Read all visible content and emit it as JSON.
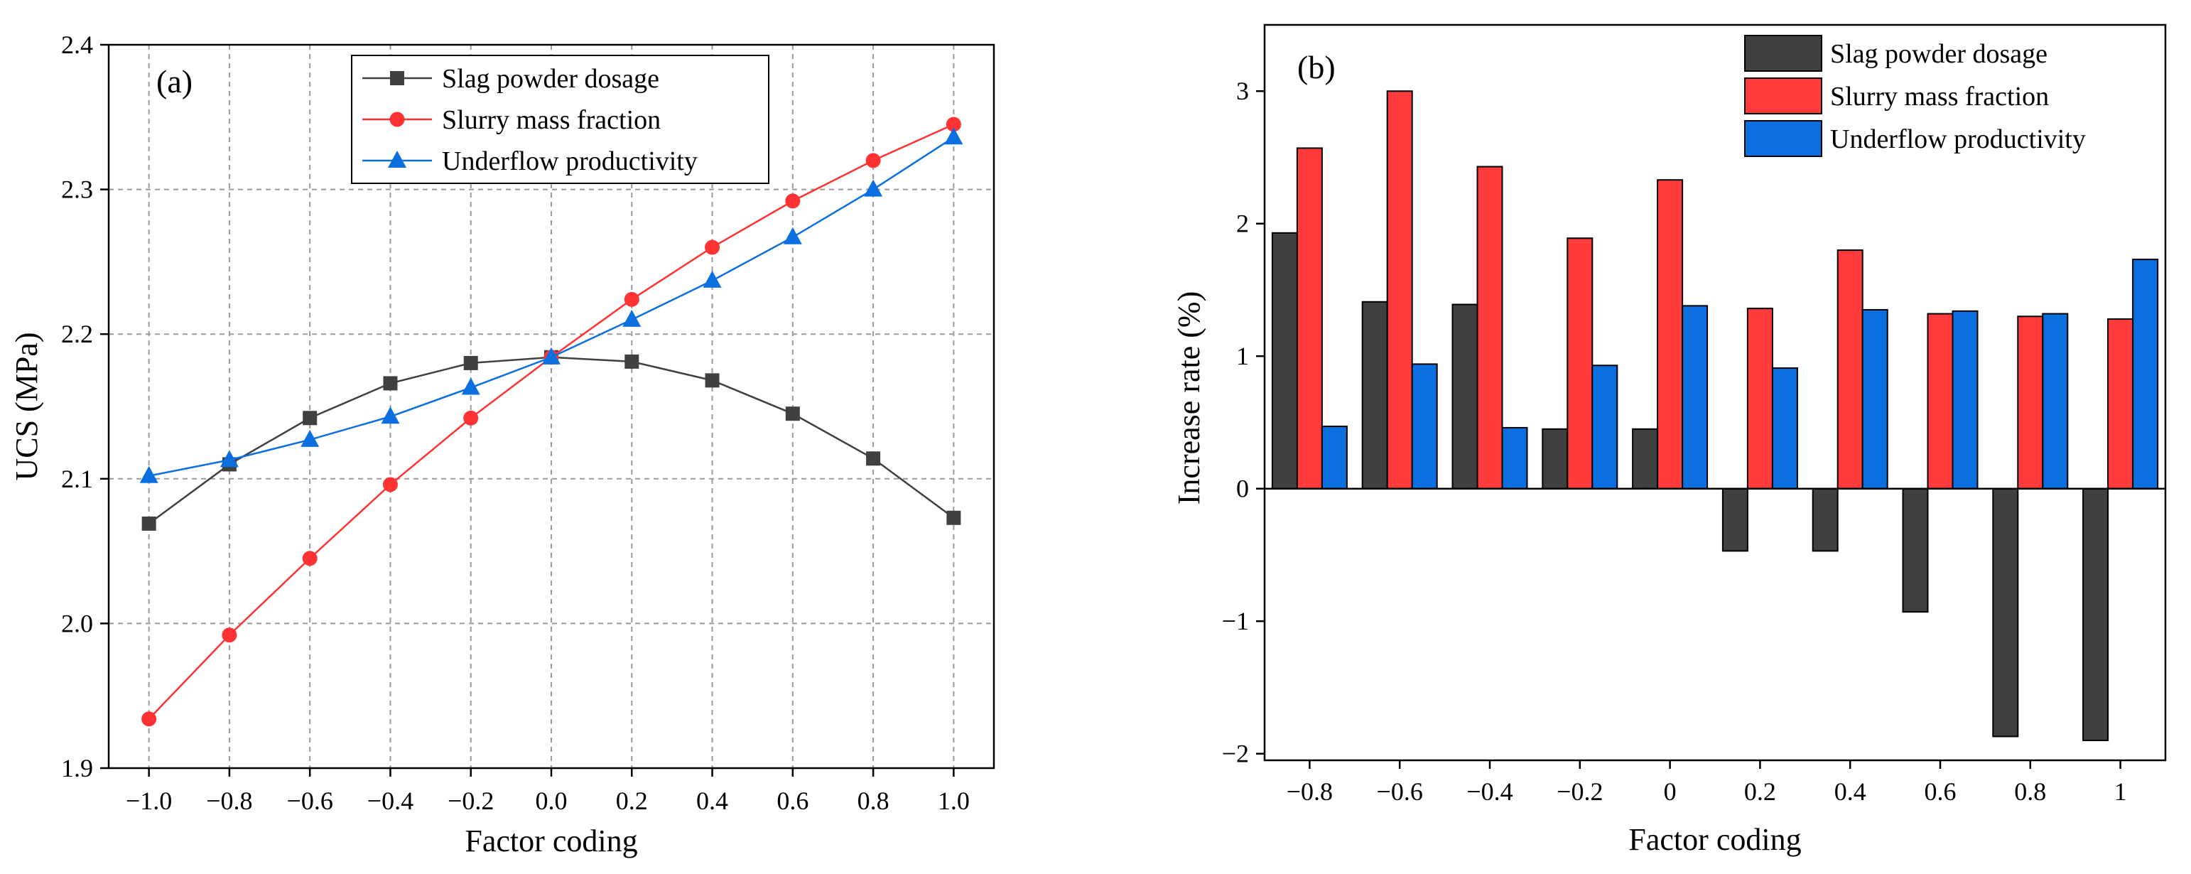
{
  "chart_data": [
    {
      "panel": "(a)",
      "type": "line",
      "x": [
        -1.0,
        -0.8,
        -0.6,
        -0.4,
        -0.2,
        0.0,
        0.2,
        0.4,
        0.6,
        0.8,
        1.0
      ],
      "x_tick_labels": [
        "−1.0",
        "−0.8",
        "−0.6",
        "−0.4",
        "−0.2",
        "0.0",
        "0.2",
        "0.4",
        "0.6",
        "0.8",
        "1.0"
      ],
      "y_ticks": [
        1.9,
        2.0,
        2.1,
        2.2,
        2.3,
        2.4
      ],
      "y_tick_labels": [
        "1.9",
        "2.0",
        "2.1",
        "2.2",
        "2.3",
        "2.4"
      ],
      "xlim": [
        -1.1,
        1.1
      ],
      "ylim": [
        1.9,
        2.4
      ],
      "xlabel": "Factor coding",
      "ylabel": "UCS (MPa)",
      "grid": true,
      "legend_position": "top-center",
      "series": [
        {
          "name": "Slag powder dosage",
          "marker": "square",
          "color": "#404040",
          "values": [
            2.069,
            2.11,
            2.142,
            2.166,
            2.18,
            2.184,
            2.181,
            2.168,
            2.145,
            2.114,
            2.073
          ]
        },
        {
          "name": "Slurry mass fraction",
          "marker": "circle",
          "color": "#ff3333",
          "values": [
            1.934,
            1.992,
            2.045,
            2.096,
            2.142,
            2.184,
            2.224,
            2.26,
            2.292,
            2.32,
            2.345
          ]
        },
        {
          "name": "Underflow productivity",
          "marker": "triangle",
          "color": "#0b6fe0",
          "values": [
            2.102,
            2.113,
            2.127,
            2.143,
            2.163,
            2.184,
            2.21,
            2.237,
            2.267,
            2.3,
            2.336
          ]
        }
      ]
    },
    {
      "panel": "(b)",
      "type": "bar",
      "categories": [
        "−0.8",
        "−0.6",
        "−0.4",
        "−0.2",
        "0",
        "0.2",
        "0.4",
        "0.6",
        "0.8",
        "1"
      ],
      "y_ticks": [
        -2,
        -1,
        0,
        1,
        2,
        3
      ],
      "y_tick_labels": [
        "−2",
        "−1",
        "0",
        "1",
        "2",
        "3"
      ],
      "ylim": [
        -2.05,
        3.5
      ],
      "xlabel": "Factor coding",
      "ylabel": "Increase rate (%)",
      "grid": false,
      "legend_position": "top-right",
      "series": [
        {
          "name": "Slag powder dosage",
          "color": "#404040",
          "values": [
            1.93,
            1.41,
            1.39,
            0.45,
            0.45,
            -0.47,
            -0.47,
            -0.93,
            -1.87,
            -1.9
          ]
        },
        {
          "name": "Slurry mass fraction",
          "color": "#ff3b3b",
          "values": [
            2.57,
            3.0,
            2.43,
            1.89,
            2.33,
            1.36,
            1.8,
            1.32,
            1.3,
            1.28
          ]
        },
        {
          "name": "Underflow productivity",
          "color": "#0b6fe0",
          "values": [
            0.47,
            0.94,
            0.46,
            0.93,
            1.38,
            0.91,
            1.35,
            1.34,
            1.32,
            1.73
          ]
        }
      ]
    }
  ]
}
